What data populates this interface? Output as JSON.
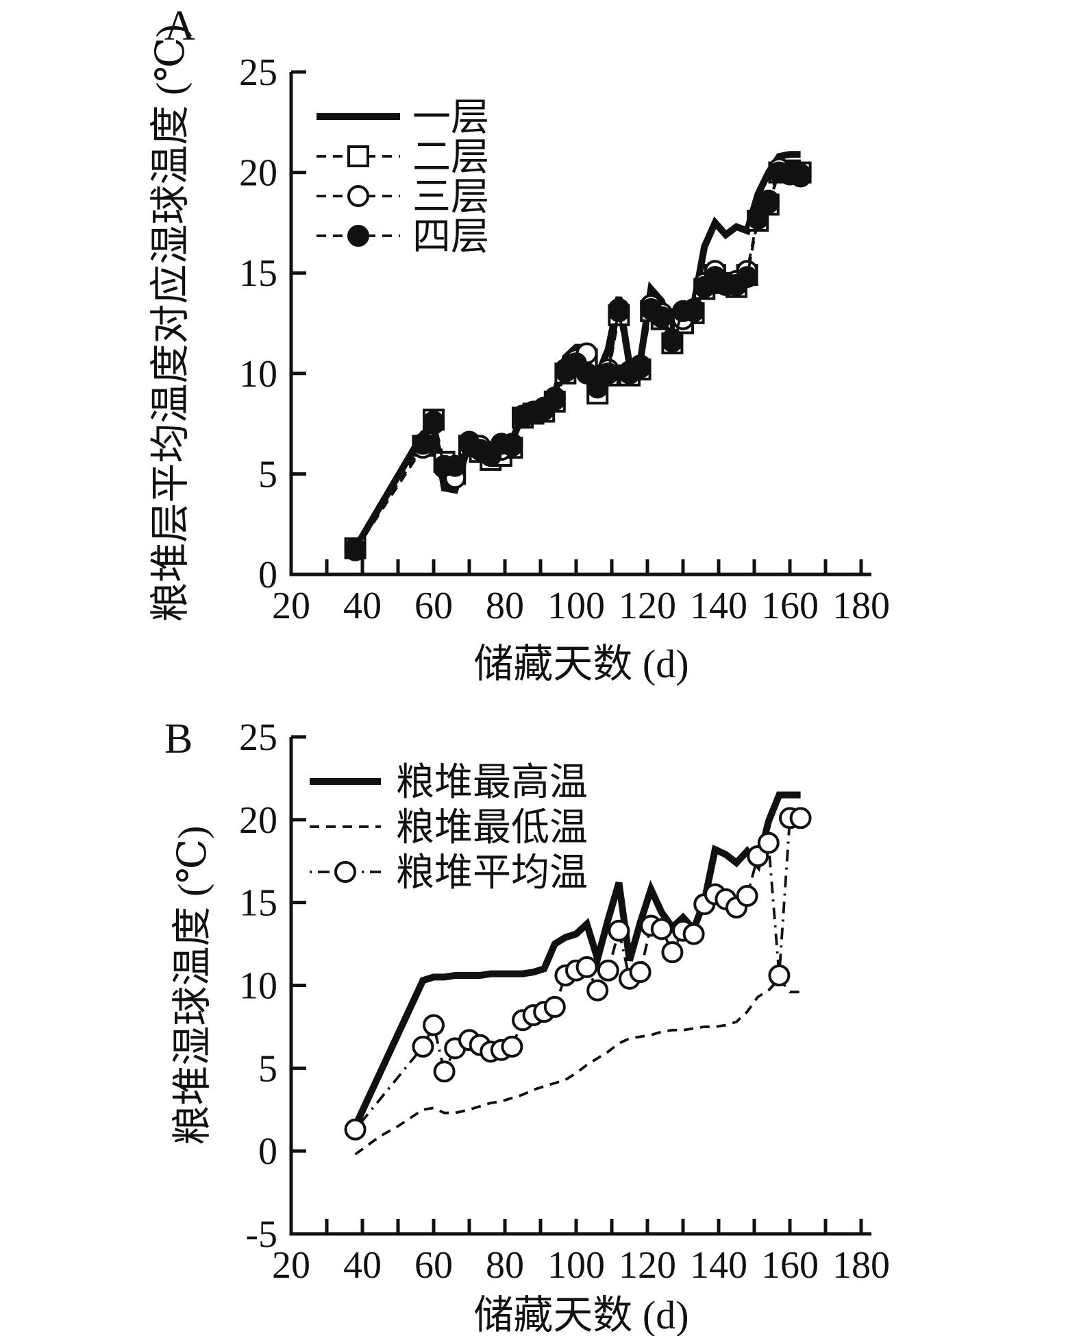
{
  "figure": {
    "panel_a_label": "A",
    "panel_b_label": "B",
    "ink_color": "#111111",
    "background_color": "#ffffff"
  },
  "chart_data": [
    {
      "id": "A",
      "type": "line",
      "panel_label": "A",
      "xlabel": "储藏天数 (d)",
      "ylabel": "粮堆层平均温度对应湿球温度 (℃)",
      "xlim": [
        20,
        180
      ],
      "ylim": [
        0,
        25
      ],
      "x_tick_values": [
        20,
        40,
        60,
        80,
        100,
        120,
        140,
        160,
        180
      ],
      "x_tick_labels": [
        "20",
        "40",
        "60",
        "80",
        "100",
        "120",
        "140",
        "160",
        "180"
      ],
      "x_minor_tick_step": 10,
      "y_tick_values": [
        0,
        5,
        10,
        15,
        20,
        25
      ],
      "y_tick_labels": [
        "0",
        "5",
        "10",
        "15",
        "20",
        "25"
      ],
      "grid": false,
      "legend_position": "upper-left-inside",
      "legend": [
        {
          "label": "一层",
          "style": "solid",
          "marker": "none"
        },
        {
          "label": "二层",
          "style": "dashed",
          "marker": "square-open"
        },
        {
          "label": "三层",
          "style": "dashed",
          "marker": "circle-open"
        },
        {
          "label": "四层",
          "style": "dashed",
          "marker": "circle-filled"
        }
      ],
      "series": [
        {
          "name": "一层",
          "style": "solid",
          "marker": "none",
          "x": [
            38,
            57,
            60,
            63,
            66,
            70,
            73,
            76,
            79,
            82,
            85,
            88,
            91,
            94,
            97,
            100,
            103,
            106,
            109,
            112,
            115,
            118,
            121,
            124,
            127,
            130,
            133,
            136,
            139,
            142,
            145,
            148,
            151,
            154,
            157,
            160,
            163
          ],
          "y": [
            1.3,
            7.0,
            7.3,
            4.3,
            4.2,
            6.6,
            6.4,
            6.0,
            6.3,
            6.7,
            7.9,
            8.2,
            8.5,
            9.0,
            10.8,
            11.3,
            11.3,
            9.9,
            11.2,
            13.8,
            10.4,
            10.6,
            14.2,
            13.6,
            12.0,
            13.3,
            13.4,
            16.3,
            17.5,
            16.9,
            17.3,
            17.1,
            18.9,
            20.0,
            20.8,
            20.9,
            20.9
          ]
        },
        {
          "name": "二层",
          "style": "dashed",
          "marker": "square-open",
          "x": [
            38,
            57,
            60,
            63,
            66,
            70,
            73,
            76,
            79,
            82,
            85,
            88,
            91,
            94,
            97,
            100,
            103,
            106,
            109,
            112,
            115,
            118,
            121,
            124,
            127,
            130,
            133,
            136,
            139,
            142,
            145,
            148,
            151,
            154,
            157,
            160,
            163
          ],
          "y": [
            1.3,
            6.4,
            7.7,
            5.6,
            5.0,
            6.4,
            6.1,
            5.7,
            5.9,
            6.3,
            7.8,
            8.0,
            8.1,
            8.6,
            10.0,
            10.4,
            10.7,
            9.0,
            9.9,
            12.9,
            9.9,
            10.2,
            13.1,
            12.7,
            11.5,
            12.5,
            13.0,
            14.2,
            14.9,
            14.5,
            14.3,
            14.9,
            17.6,
            18.4,
            20.0,
            20.1,
            20.0
          ]
        },
        {
          "name": "三层",
          "style": "dashed",
          "marker": "circle-open",
          "x": [
            38,
            57,
            60,
            63,
            66,
            70,
            73,
            76,
            79,
            82,
            85,
            88,
            91,
            94,
            97,
            100,
            103,
            106,
            109,
            112,
            115,
            118,
            121,
            124,
            127,
            130,
            133,
            136,
            139,
            142,
            145,
            148,
            151,
            154,
            157,
            160,
            163
          ],
          "y": [
            1.2,
            6.3,
            7.6,
            5.3,
            4.8,
            6.6,
            6.4,
            6.0,
            6.2,
            6.5,
            7.9,
            8.1,
            8.3,
            8.8,
            10.2,
            10.7,
            11.0,
            9.3,
            10.2,
            13.2,
            10.1,
            10.4,
            13.4,
            13.0,
            11.7,
            12.7,
            13.2,
            14.5,
            15.1,
            14.4,
            14.6,
            15.1,
            17.8,
            18.6,
            20.2,
            19.9,
            19.8
          ]
        },
        {
          "name": "四层",
          "style": "dashed",
          "marker": "circle-filled",
          "x": [
            38,
            57,
            60,
            63,
            66,
            70,
            73,
            76,
            79,
            82,
            85,
            88,
            91,
            94,
            97,
            100,
            103,
            106,
            109,
            112,
            115,
            118,
            121,
            124,
            127,
            130,
            133,
            136,
            139,
            142,
            145,
            148,
            151,
            154,
            157,
            160,
            163
          ],
          "y": [
            1.3,
            6.5,
            7.5,
            5.4,
            5.4,
            6.5,
            6.2,
            5.9,
            6.5,
            6.4,
            7.8,
            8.0,
            8.2,
            8.7,
            10.1,
            10.5,
            10.0,
            9.4,
            10.0,
            13.1,
            10.0,
            10.3,
            13.2,
            12.8,
            11.6,
            13.1,
            13.1,
            14.3,
            14.8,
            14.5,
            14.4,
            14.8,
            17.7,
            18.5,
            20.0,
            20.0,
            19.9
          ]
        }
      ]
    },
    {
      "id": "B",
      "type": "line",
      "panel_label": "B",
      "xlabel": "储藏天数 (d)",
      "ylabel": "粮堆湿球温度 (℃)",
      "xlim": [
        20,
        180
      ],
      "ylim": [
        -5,
        25
      ],
      "x_tick_values": [
        20,
        40,
        60,
        80,
        100,
        120,
        140,
        160,
        180
      ],
      "x_tick_labels": [
        "20",
        "40",
        "60",
        "80",
        "100",
        "120",
        "140",
        "160",
        "180"
      ],
      "x_minor_tick_step": 10,
      "y_tick_values": [
        -5,
        0,
        5,
        10,
        15,
        20,
        25
      ],
      "y_tick_labels": [
        "-5",
        "0",
        "5",
        "10",
        "15",
        "20",
        "25"
      ],
      "grid": false,
      "legend_position": "upper-left-inside",
      "legend": [
        {
          "label": "粮堆最高温",
          "style": "solid",
          "marker": "none"
        },
        {
          "label": "粮堆最低温",
          "style": "dashed",
          "marker": "none"
        },
        {
          "label": "粮堆平均温",
          "style": "dashdot",
          "marker": "circle-open"
        }
      ],
      "series": [
        {
          "name": "粮堆最高温",
          "style": "solid",
          "marker": "none",
          "x": [
            38,
            57,
            60,
            63,
            66,
            70,
            73,
            76,
            79,
            82,
            85,
            88,
            91,
            94,
            97,
            100,
            103,
            106,
            109,
            112,
            115,
            118,
            121,
            124,
            127,
            130,
            133,
            136,
            139,
            142,
            145,
            148,
            151,
            154,
            157,
            160,
            163
          ],
          "y": [
            1.5,
            10.3,
            10.5,
            10.5,
            10.6,
            10.6,
            10.6,
            10.7,
            10.7,
            10.7,
            10.7,
            10.8,
            11.0,
            12.5,
            12.9,
            13.1,
            13.7,
            11.6,
            14.0,
            16.2,
            11.5,
            13.8,
            15.8,
            14.4,
            13.5,
            14.1,
            13.4,
            15.1,
            18.2,
            17.9,
            17.4,
            18.1,
            17.3,
            19.9,
            21.5,
            21.5,
            21.5
          ]
        },
        {
          "name": "粮堆最低温",
          "style": "dashed",
          "marker": "none",
          "x": [
            38,
            45,
            50,
            57,
            60,
            63,
            66,
            70,
            73,
            76,
            79,
            82,
            85,
            88,
            91,
            94,
            97,
            100,
            103,
            106,
            109,
            112,
            115,
            118,
            121,
            124,
            127,
            130,
            133,
            136,
            139,
            142,
            145,
            148,
            151,
            154,
            157,
            160,
            163
          ],
          "y": [
            -0.2,
            0.9,
            1.5,
            2.5,
            2.6,
            2.3,
            2.3,
            2.5,
            2.7,
            2.9,
            3.0,
            3.2,
            3.4,
            3.7,
            3.9,
            4.1,
            4.3,
            4.7,
            5.2,
            5.6,
            6.0,
            6.5,
            6.8,
            6.9,
            7.0,
            7.2,
            7.3,
            7.3,
            7.4,
            7.5,
            7.5,
            7.6,
            7.8,
            8.4,
            9.3,
            9.7,
            10.4,
            9.6,
            9.6
          ]
        },
        {
          "name": "粮堆平均温",
          "style": "dashdot",
          "marker": "circle-open",
          "x": [
            38,
            57,
            60,
            63,
            66,
            70,
            73,
            76,
            79,
            82,
            85,
            88,
            91,
            94,
            97,
            100,
            103,
            106,
            109,
            112,
            115,
            118,
            121,
            124,
            127,
            130,
            133,
            136,
            139,
            142,
            145,
            148,
            151,
            154,
            157,
            160,
            163
          ],
          "y": [
            1.3,
            6.3,
            7.6,
            4.8,
            6.2,
            6.7,
            6.4,
            6.0,
            6.1,
            6.3,
            7.9,
            8.2,
            8.4,
            8.7,
            10.6,
            10.9,
            11.1,
            9.7,
            10.9,
            13.3,
            10.4,
            10.8,
            13.6,
            13.4,
            12.0,
            13.3,
            13.1,
            14.9,
            15.5,
            15.2,
            14.7,
            15.4,
            17.8,
            18.6,
            10.6,
            20.1,
            20.1
          ]
        }
      ]
    }
  ]
}
